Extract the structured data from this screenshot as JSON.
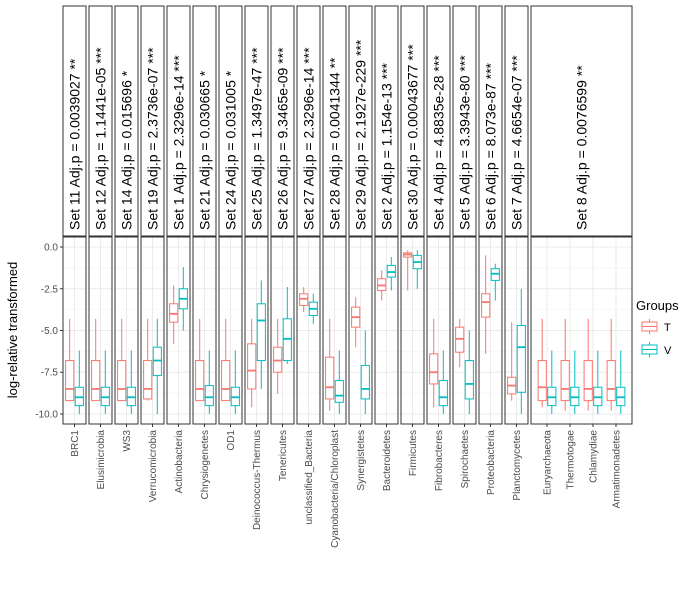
{
  "chart_data": {
    "type": "boxplot",
    "title": "",
    "xlabel": "",
    "ylabel": "log-relative transformed",
    "ylim": [
      -10.6,
      0.6
    ],
    "yticks": [
      0.0,
      -2.5,
      -5.0,
      -7.5,
      -10.0
    ],
    "ytick_labels": [
      "0.0",
      "-2.5",
      "-5.0",
      "-7.5",
      "-10.0"
    ],
    "grid": true,
    "legend": {
      "title": "Groups",
      "placement": "right",
      "entries": [
        {
          "name": "T",
          "color": "#F8766D"
        },
        {
          "name": "V",
          "color": "#00BFC4"
        }
      ]
    },
    "panels": [
      {
        "strip": "Set 11 Adj.p = 0.0039027 **",
        "taxa": [
          {
            "name": "BRC1",
            "T": [
              -9.2,
              -9.2,
              -8.5,
              -6.8,
              -4.3
            ],
            "V": [
              -10.0,
              -9.5,
              -9.0,
              -8.4,
              -6.2
            ]
          }
        ]
      },
      {
        "strip": "Set 12 Adj.p = 1.1441e-05 ***",
        "taxa": [
          {
            "name": "Elusimicrobia",
            "T": [
              -9.2,
              -9.2,
              -8.5,
              -6.8,
              -4.3
            ],
            "V": [
              -10.0,
              -9.5,
              -9.0,
              -8.4,
              -6.2
            ]
          }
        ]
      },
      {
        "strip": "Set 14 Adj.p = 0.015696 *",
        "taxa": [
          {
            "name": "WS3",
            "T": [
              -9.2,
              -9.2,
              -8.5,
              -6.8,
              -4.3
            ],
            "V": [
              -10.0,
              -9.5,
              -9.0,
              -8.4,
              -6.2
            ]
          }
        ]
      },
      {
        "strip": "Set 19 Adj.p = 2.3736e-07 ***",
        "taxa": [
          {
            "name": "Verrucomicrobia",
            "T": [
              -9.2,
              -9.1,
              -8.5,
              -6.8,
              -4.3
            ],
            "V": [
              -10.0,
              -7.7,
              -6.8,
              -6.0,
              -4.3
            ]
          }
        ]
      },
      {
        "strip": "Set 1 Adj.p = 2.3296e-14 ***",
        "taxa": [
          {
            "name": "Actinobacteria",
            "T": [
              -5.8,
              -4.5,
              -4.0,
              -3.4,
              -2.3
            ],
            "V": [
              -5.0,
              -3.7,
              -3.1,
              -2.5,
              -1.2
            ]
          }
        ]
      },
      {
        "strip": "Set 21 Adj.p = 0.030665 *",
        "taxa": [
          {
            "name": "Chrysiogenetes",
            "T": [
              -9.2,
              -9.2,
              -8.5,
              -6.8,
              -4.3
            ],
            "V": [
              -10.0,
              -9.5,
              -9.0,
              -8.3,
              -6.2
            ]
          }
        ]
      },
      {
        "strip": "Set 24 Adj.p = 0.031005 *",
        "taxa": [
          {
            "name": "OD1",
            "T": [
              -9.2,
              -9.2,
              -8.5,
              -6.8,
              -4.3
            ],
            "V": [
              -10.0,
              -9.5,
              -9.0,
              -8.4,
              -6.2
            ]
          }
        ]
      },
      {
        "strip": "Set 25 Adj.p = 1.3497e-47 ***",
        "taxa": [
          {
            "name": "Deinococcus-Thermus",
            "T": [
              -9.6,
              -8.5,
              -7.4,
              -5.8,
              -4.3
            ],
            "V": [
              -8.5,
              -6.8,
              -4.4,
              -3.4,
              -2.0
            ]
          }
        ]
      },
      {
        "strip": "Set 26 Adj.p = 9.3465e-09 ***",
        "taxa": [
          {
            "name": "Tenericutes",
            "T": [
              -8.8,
              -7.5,
              -6.8,
              -6.0,
              -4.3
            ],
            "V": [
              -7.0,
              -6.8,
              -5.5,
              -4.3,
              -2.4
            ]
          }
        ]
      },
      {
        "strip": "Set 27 Adj.p = 2.3296e-14 ***",
        "taxa": [
          {
            "name": "unclassified_Bacteria",
            "T": [
              -3.9,
              -3.5,
              -3.1,
              -2.8,
              -2.4
            ],
            "V": [
              -4.6,
              -4.1,
              -3.7,
              -3.3,
              -2.8
            ]
          }
        ]
      },
      {
        "strip": "Set 28 Adj.p = 0.0041344 **",
        "taxa": [
          {
            "name": "Cyanobacteria/Chloroplast",
            "T": [
              -9.8,
              -9.1,
              -8.4,
              -6.6,
              -4.3
            ],
            "V": [
              -10.0,
              -9.3,
              -8.9,
              -8.0,
              -6.2
            ]
          }
        ]
      },
      {
        "strip": "Set 29 Adj.p = 2.1927e-229 ***",
        "taxa": [
          {
            "name": "Synergistetes",
            "T": [
              -6.0,
              -4.8,
              -4.2,
              -3.6,
              -3.0
            ],
            "V": [
              -10.0,
              -9.1,
              -8.5,
              -7.1,
              -5.0
            ]
          }
        ]
      },
      {
        "strip": "Set 2 Adj.p = 1.154e-13 ***",
        "taxa": [
          {
            "name": "Bacteroidetes",
            "T": [
              -3.2,
              -2.6,
              -2.3,
              -1.9,
              -1.4
            ],
            "V": [
              -2.6,
              -1.8,
              -1.5,
              -1.1,
              -0.6
            ]
          }
        ]
      },
      {
        "strip": "Set 30 Adj.p = 0.00043677 ***",
        "taxa": [
          {
            "name": "Firmicutes",
            "T": [
              -2.6,
              -0.6,
              -0.45,
              -0.35,
              -0.2
            ],
            "V": [
              -2.5,
              -1.3,
              -0.9,
              -0.5,
              -0.2
            ]
          }
        ]
      },
      {
        "strip": "Set 4 Adj.p = 4.8835e-28 ***",
        "taxa": [
          {
            "name": "Fibrobacteres",
            "T": [
              -9.6,
              -8.2,
              -7.5,
              -6.4,
              -4.3
            ],
            "V": [
              -10.0,
              -9.5,
              -9.0,
              -8.0,
              -6.2
            ]
          }
        ]
      },
      {
        "strip": "Set 5 Adj.p = 3.3943e-80 ***",
        "taxa": [
          {
            "name": "Spirochaetes",
            "T": [
              -7.2,
              -6.3,
              -5.5,
              -4.8,
              -4.3
            ],
            "V": [
              -10.0,
              -9.1,
              -8.2,
              -6.8,
              -5.0
            ]
          }
        ]
      },
      {
        "strip": "Set 6 Adj.p = 8.073e-87 ***",
        "taxa": [
          {
            "name": "Proteobacteria",
            "T": [
              -6.4,
              -4.2,
              -3.3,
              -2.8,
              -0.5
            ],
            "V": [
              -3.2,
              -2.0,
              -1.6,
              -1.3,
              -1.0
            ]
          }
        ]
      },
      {
        "strip": "Set 7 Adj.p = 4.6654e-07 ***",
        "taxa": [
          {
            "name": "Planctomycetes",
            "T": [
              -9.2,
              -8.8,
              -8.3,
              -7.8,
              -4.5
            ],
            "V": [
              -10.0,
              -8.7,
              -6.0,
              -4.7,
              -2.5
            ]
          }
        ]
      },
      {
        "strip": "Set 8 Adj.p = 0.0076599 **",
        "taxa": [
          {
            "name": "Euryarchaeota",
            "T": [
              -9.6,
              -9.2,
              -8.4,
              -6.8,
              -4.3
            ],
            "V": [
              -10.0,
              -9.5,
              -9.0,
              -8.4,
              -6.2
            ]
          },
          {
            "name": "Thermotogae",
            "T": [
              -9.8,
              -9.2,
              -8.5,
              -6.8,
              -4.3
            ],
            "V": [
              -10.0,
              -9.5,
              -9.0,
              -8.4,
              -6.2
            ]
          },
          {
            "name": "Chlamydiae",
            "T": [
              -9.8,
              -9.2,
              -8.5,
              -6.8,
              -4.3
            ],
            "V": [
              -10.0,
              -9.5,
              -9.0,
              -8.4,
              -6.2
            ]
          },
          {
            "name": "Armatimonadetes",
            "T": [
              -9.8,
              -9.2,
              -8.5,
              -6.8,
              -4.3
            ],
            "V": [
              -10.0,
              -9.5,
              -9.0,
              -8.4,
              -6.2
            ]
          }
        ]
      }
    ]
  }
}
